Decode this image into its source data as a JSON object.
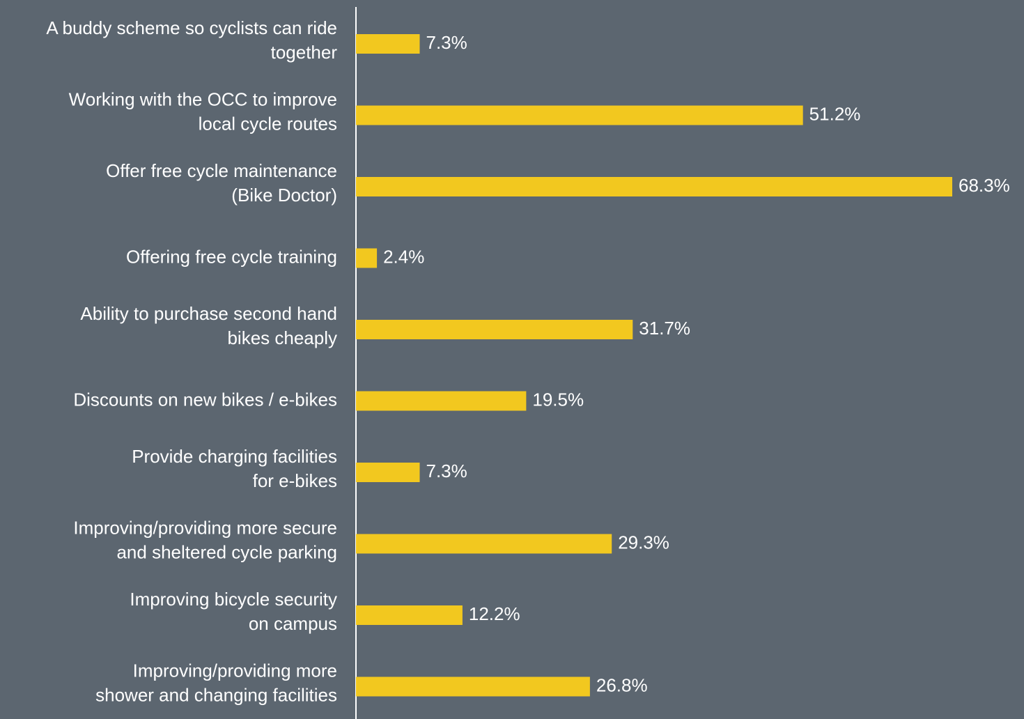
{
  "chart_data": {
    "type": "bar",
    "orientation": "horizontal",
    "color": "#f2c81f",
    "categories": [
      [
        "A buddy scheme so cyclists can ride",
        "together"
      ],
      [
        "Working with the OCC to improve",
        "local cycle routes"
      ],
      [
        "Offer free cycle maintenance",
        "(Bike Doctor)"
      ],
      [
        "Offering free cycle training"
      ],
      [
        "Ability to purchase second hand",
        "bikes cheaply"
      ],
      [
        "Discounts on new bikes / e-bikes"
      ],
      [
        "Provide charging facilities",
        "for e-bikes"
      ],
      [
        "Improving/providing more secure",
        "and sheltered cycle parking"
      ],
      [
        "Improving bicycle security",
        "on campus"
      ],
      [
        "Improving/providing more",
        "shower and changing facilities"
      ]
    ],
    "values": [
      7.3,
      51.2,
      68.3,
      2.4,
      31.7,
      19.5,
      7.3,
      29.3,
      12.2,
      26.8
    ],
    "value_labels": [
      "7.3%",
      "51.2%",
      "68.3%",
      "2.4%",
      "31.7%",
      "19.5%",
      "7.3%",
      "29.3%",
      "12.2%",
      "26.8%"
    ]
  }
}
